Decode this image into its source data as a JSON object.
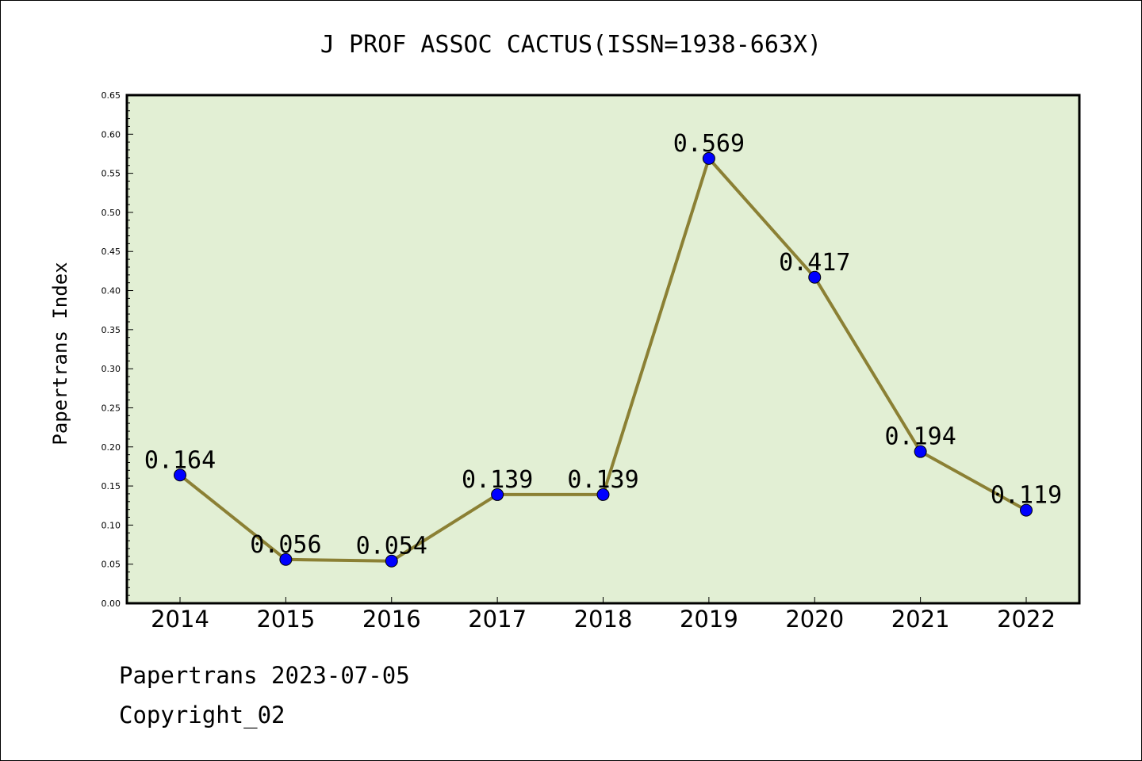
{
  "footer": {
    "line1": "Papertrans 2023-07-05",
    "line2": "Copyright_02"
  },
  "chart_data": {
    "type": "line",
    "title": "J PROF ASSOC CACTUS(ISSN=1938-663X)",
    "xlabel": "",
    "ylabel": "Papertrans Index",
    "categories": [
      "2014",
      "2015",
      "2016",
      "2017",
      "2018",
      "2019",
      "2020",
      "2021",
      "2022"
    ],
    "series": [
      {
        "values": [
          0.164,
          0.056,
          0.054,
          0.139,
          0.139,
          0.569,
          0.417,
          0.194,
          0.119
        ],
        "labels": [
          "0.164",
          "0.056",
          "0.054",
          "0.139",
          "0.139",
          "0.569",
          "0.417",
          "0.194",
          "0.119"
        ],
        "line_color": "#8b8034",
        "marker_color": "#0000ff"
      }
    ],
    "ylim": [
      0,
      0.65
    ],
    "yticks": [
      "0.00",
      "0.05",
      "0.10",
      "0.15",
      "0.20",
      "0.25",
      "0.30",
      "0.35",
      "0.40",
      "0.45",
      "0.50",
      "0.55",
      "0.60",
      "0.65"
    ],
    "plot_background": "#e2efd4",
    "grid": false,
    "legend": "none"
  }
}
